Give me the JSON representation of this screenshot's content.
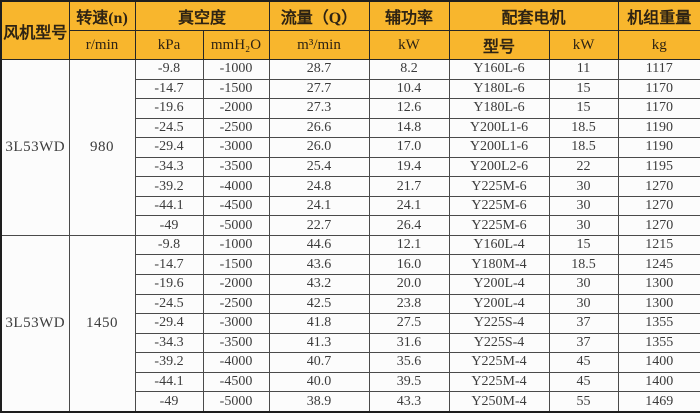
{
  "colors": {
    "header_bg": "#F8B62D",
    "header_text": "#2e2313",
    "cell_bg": "#fcfcfc",
    "cell_text": "#3c3c3c",
    "grid_border": "#4a4a4a",
    "outer_border": "#1e1e1e"
  },
  "table": {
    "header": {
      "fan_model": "风机型号",
      "speed_title": "转速(n)",
      "speed_unit": "r/min",
      "vacuum_title": "真空度",
      "vacuum_unit_kpa": "kPa",
      "vacuum_unit_mmh2o": "mmH₂O",
      "flow_title": "流量（Q）",
      "flow_unit": "m³/min",
      "power_title": "辅功率",
      "power_unit": "kW",
      "motor_title": "配套电机",
      "motor_model_label": "型号",
      "motor_power_label": "kW",
      "weight_title": "机组重量",
      "weight_unit": "kg"
    },
    "groups": [
      {
        "model": "3L53WD",
        "speed": "980",
        "rows": [
          [
            "-9.8",
            "-1000",
            "28.7",
            "8.2",
            "Y160L-6",
            "11",
            "1117"
          ],
          [
            "-14.7",
            "-1500",
            "27.7",
            "10.4",
            "Y180L-6",
            "15",
            "1170"
          ],
          [
            "-19.6",
            "-2000",
            "27.3",
            "12.6",
            "Y180L-6",
            "15",
            "1170"
          ],
          [
            "-24.5",
            "-2500",
            "26.6",
            "14.8",
            "Y200L1-6",
            "18.5",
            "1190"
          ],
          [
            "-29.4",
            "-3000",
            "26.0",
            "17.0",
            "Y200L1-6",
            "18.5",
            "1190"
          ],
          [
            "-34.3",
            "-3500",
            "25.4",
            "19.4",
            "Y200L2-6",
            "22",
            "1195"
          ],
          [
            "-39.2",
            "-4000",
            "24.8",
            "21.7",
            "Y225M-6",
            "30",
            "1270"
          ],
          [
            "-44.1",
            "-4500",
            "24.1",
            "24.1",
            "Y225M-6",
            "30",
            "1270"
          ],
          [
            "-49",
            "-5000",
            "22.7",
            "26.4",
            "Y225M-6",
            "30",
            "1270"
          ]
        ]
      },
      {
        "model": "3L53WD",
        "speed": "1450",
        "rows": [
          [
            "-9.8",
            "-1000",
            "44.6",
            "12.1",
            "Y160L-4",
            "15",
            "1215"
          ],
          [
            "-14.7",
            "-1500",
            "43.6",
            "16.0",
            "Y180M-4",
            "18.5",
            "1245"
          ],
          [
            "-19.6",
            "-2000",
            "43.2",
            "20.0",
            "Y200L-4",
            "30",
            "1300"
          ],
          [
            "-24.5",
            "-2500",
            "42.5",
            "23.8",
            "Y200L-4",
            "30",
            "1300"
          ],
          [
            "-29.4",
            "-3000",
            "41.8",
            "27.5",
            "Y225S-4",
            "37",
            "1355"
          ],
          [
            "-34.3",
            "-3500",
            "41.3",
            "31.6",
            "Y225S-4",
            "37",
            "1355"
          ],
          [
            "-39.2",
            "-4000",
            "40.7",
            "35.6",
            "Y225M-4",
            "45",
            "1400"
          ],
          [
            "-44.1",
            "-4500",
            "40.0",
            "39.5",
            "Y225M-4",
            "45",
            "1400"
          ],
          [
            "-49",
            "-5000",
            "38.9",
            "43.3",
            "Y250M-4",
            "55",
            "1469"
          ]
        ]
      }
    ]
  }
}
